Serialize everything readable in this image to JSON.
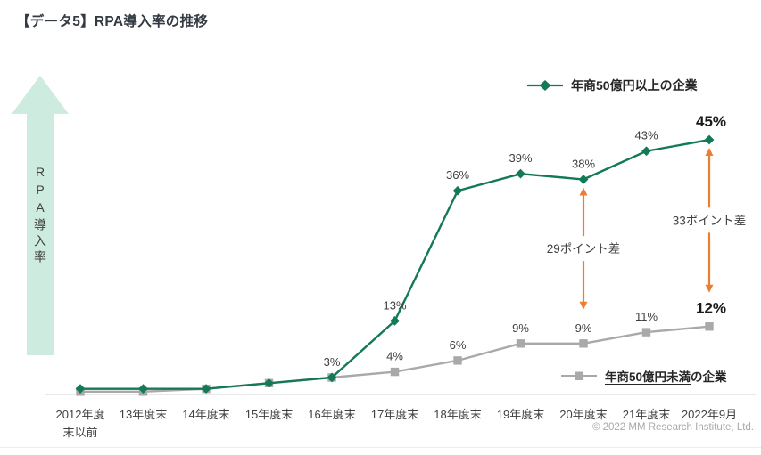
{
  "page": {
    "title": "【データ5】RPA導入率の推移"
  },
  "y_axis_arrow": {
    "label": "RPA導入率",
    "color": "#cdebdf",
    "text_color": "#404040"
  },
  "legend_top": {
    "emphasis": "年商50億円以上",
    "rest": "の企業"
  },
  "legend_bottom": {
    "emphasis": "年商50億円未満",
    "rest": "の企業"
  },
  "footer": {
    "copyright": "© 2022 MM Research Institute, Ltd."
  },
  "chart_data": {
    "type": "line",
    "title": "RPA導入率の推移",
    "ylabel": "RPA導入率",
    "xlabel": "",
    "ylim": [
      0,
      50
    ],
    "grid": false,
    "legend_position": "top-right and bottom-right, inline with series",
    "categories": [
      "2012年度\n末以前",
      "13年度末",
      "14年度末",
      "15年度末",
      "16年度末",
      "17年度末",
      "18年度末",
      "19年度末",
      "20年度末",
      "21年度末",
      "2022年9月"
    ],
    "series": [
      {
        "name": "年商50億円以上の企業",
        "color": "#137a55",
        "marker": "diamond",
        "values": [
          1,
          1,
          1,
          2,
          3,
          13,
          36,
          39,
          38,
          43,
          45
        ],
        "labels": [
          "",
          "",
          "",
          "",
          "3%",
          "13%",
          "36%",
          "39%",
          "38%",
          "43%",
          "45%"
        ],
        "strong_last": true
      },
      {
        "name": "年商50億円未満の企業",
        "color": "#a9a9a9",
        "marker": "square",
        "values": [
          0.5,
          0.5,
          1,
          2,
          3,
          4,
          6,
          9,
          9,
          11,
          12
        ],
        "labels": [
          "",
          "",
          "",
          "",
          "",
          "4%",
          "6%",
          "9%",
          "9%",
          "11%",
          "12%"
        ],
        "strong_last": true
      }
    ],
    "annotations": [
      {
        "x_index": 8,
        "text": "29ポイント差"
      },
      {
        "x_index": 10,
        "text": "33ポイント差"
      }
    ],
    "annotation_color": "#ed7d31",
    "annotation_text_color": "#404040",
    "axis_color": "#d9d9d9",
    "label_color": "#404040",
    "strong_label_color": "#1a1a1a",
    "tick_label_color": "#404040"
  }
}
